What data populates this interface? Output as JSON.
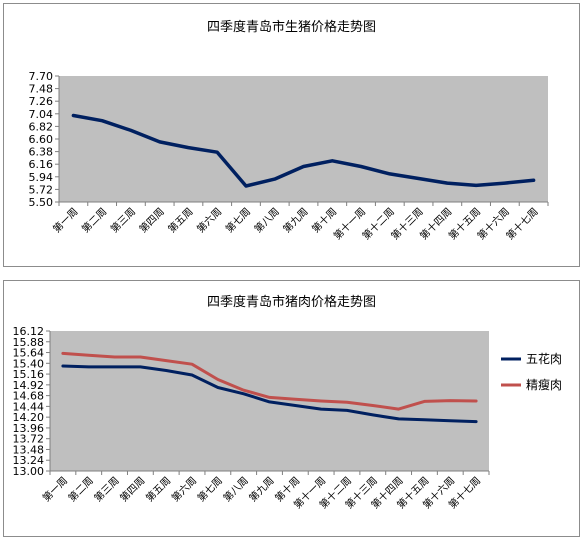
{
  "chart_data": [
    {
      "type": "line",
      "title": "四季度青岛市生猪价格走势图",
      "categories": [
        "第一周",
        "第二周",
        "第三周",
        "第四周",
        "第五周",
        "第六周",
        "第七周",
        "第八周",
        "第九周",
        "第十周",
        "第十一周",
        "第十二周",
        "第十三周",
        "第十四周",
        "第十五周",
        "第十六周",
        "第十七周"
      ],
      "yticks": [
        "5.50",
        "5.72",
        "5.94",
        "6.16",
        "6.38",
        "6.60",
        "6.82",
        "7.04",
        "7.26",
        "7.48",
        "7.70"
      ],
      "ylim": [
        5.5,
        7.7
      ],
      "grid": false,
      "legend": "none",
      "series": [
        {
          "values": [
            7.01,
            6.92,
            6.75,
            6.55,
            6.45,
            6.37,
            5.78,
            5.9,
            6.12,
            6.22,
            6.12,
            5.99,
            5.91,
            5.83,
            5.79,
            5.83,
            5.88
          ],
          "color": "#002060"
        }
      ]
    },
    {
      "type": "line",
      "title": "四季度青岛市猪肉价格走势图",
      "categories": [
        "第一周",
        "第二周",
        "第三周",
        "第四周",
        "第五周",
        "第六周",
        "第七周",
        "第八周",
        "第九周",
        "第十周",
        "第十一周",
        "第十二周",
        "第十三周",
        "第十四周",
        "第十五周",
        "第十六周",
        "第十七周"
      ],
      "yticks": [
        "13.00",
        "13.24",
        "13.48",
        "13.72",
        "13.96",
        "14.20",
        "14.44",
        "14.68",
        "14.92",
        "15.16",
        "15.40",
        "15.64",
        "15.88",
        "16.12"
      ],
      "ylim": [
        13.0,
        16.12
      ],
      "grid": false,
      "legend": "right",
      "series": [
        {
          "name": "五花肉",
          "values": [
            15.34,
            15.32,
            15.32,
            15.32,
            15.24,
            15.14,
            14.86,
            14.72,
            14.54,
            14.46,
            14.38,
            14.35,
            14.25,
            14.16,
            14.14,
            14.12,
            14.1
          ],
          "color": "#002060"
        },
        {
          "name": "精瘦肉",
          "values": [
            15.62,
            15.58,
            15.54,
            15.54,
            15.46,
            15.38,
            15.04,
            14.8,
            14.64,
            14.6,
            14.56,
            14.53,
            14.46,
            14.38,
            14.55,
            14.57,
            14.56
          ],
          "color": "#c0504d"
        }
      ]
    }
  ]
}
